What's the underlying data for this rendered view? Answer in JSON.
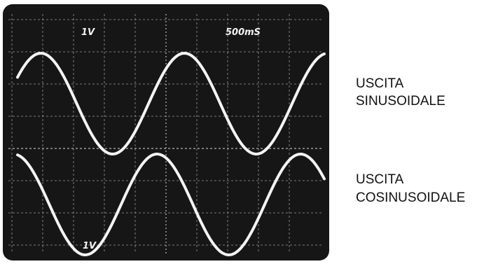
{
  "screen": {
    "labels": {
      "top_left": "1V",
      "top_right": "500mS",
      "bottom_left": "1V"
    }
  },
  "captions": [
    {
      "line1": "USCITA",
      "line2": "SINUSOIDALE"
    },
    {
      "line1": "USCITA",
      "line2": "COSINUSOIDALE"
    }
  ]
}
